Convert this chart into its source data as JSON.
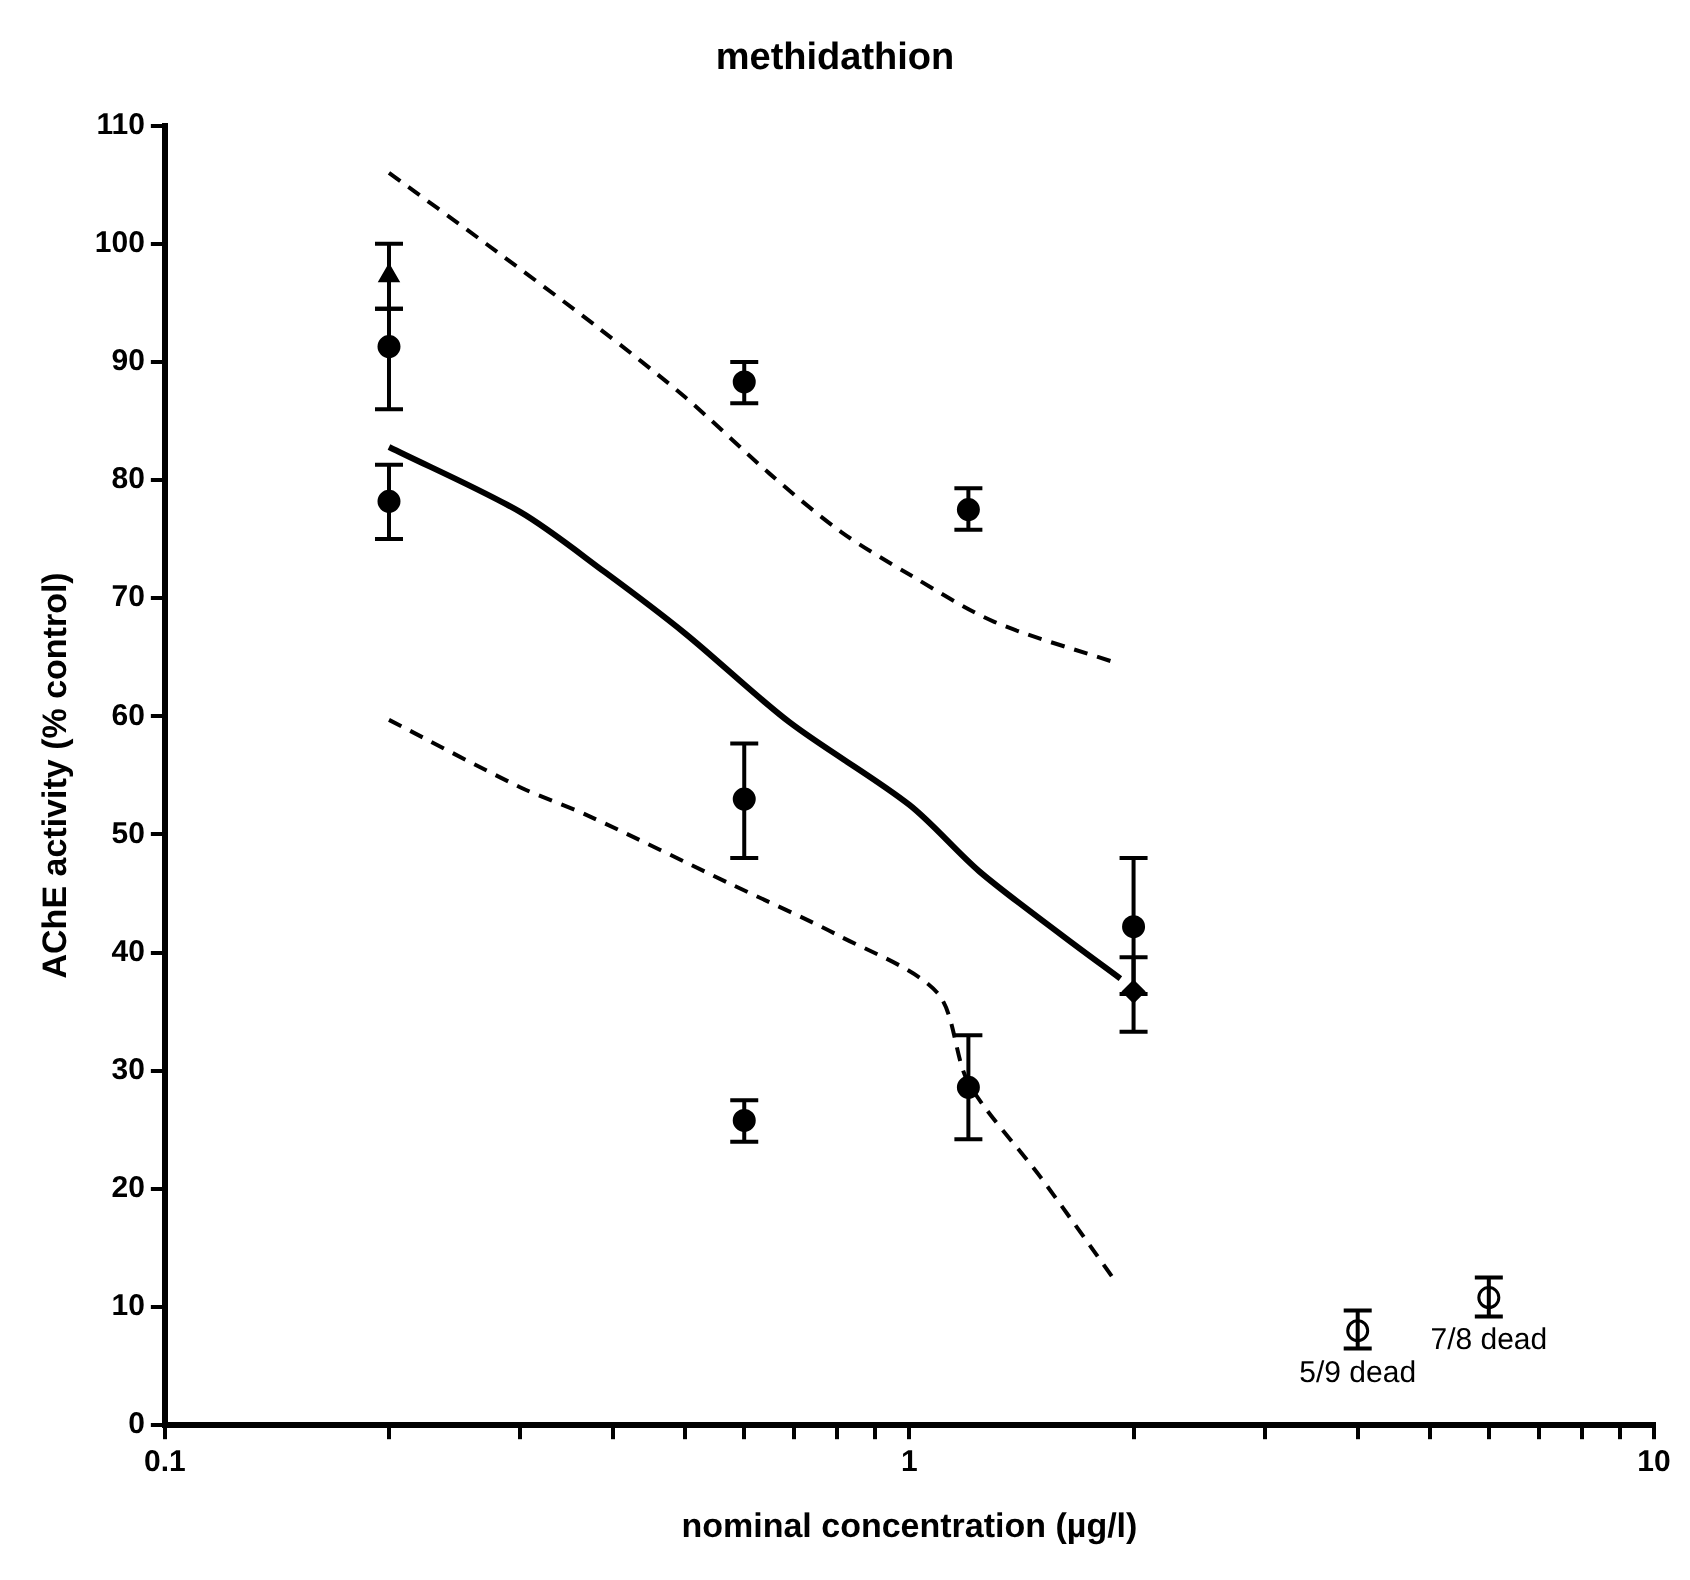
{
  "chart_data": {
    "type": "scatter",
    "title": "methidathion",
    "xlabel": "nominal concentration (µg/l)",
    "ylabel": "AChE activity (% control)",
    "log": "x",
    "xlim": [
      0.1,
      10
    ],
    "ylim": [
      0,
      110
    ],
    "xticks": [
      0.1,
      {
        "value": 0.2,
        "label": null
      },
      {
        "value": 0.3,
        "label": null
      },
      {
        "value": 0.4,
        "label": null
      },
      {
        "value": 0.5,
        "label": null
      },
      {
        "value": 0.6,
        "label": null
      },
      {
        "value": 0.7,
        "label": null
      },
      {
        "value": 0.8,
        "label": null
      },
      {
        "value": 0.9,
        "label": null
      },
      1,
      {
        "value": 2,
        "label": null
      },
      {
        "value": 3,
        "label": null
      },
      {
        "value": 4,
        "label": null
      },
      {
        "value": 5,
        "label": null
      },
      {
        "value": 6,
        "label": null
      },
      {
        "value": 7,
        "label": null
      },
      {
        "value": 8,
        "label": null
      },
      {
        "value": 9,
        "label": null
      },
      10
    ],
    "yticks": [
      0,
      10,
      20,
      30,
      40,
      50,
      60,
      70,
      80,
      90,
      100,
      110
    ],
    "grid": false,
    "legend": false,
    "series": [
      {
        "type": "scatter",
        "marker": "circle",
        "color": "#000000",
        "x": [
          0.2,
          0.2,
          0.6,
          0.6,
          0.6,
          1.2,
          1.2,
          2
        ],
        "values": [
          91.3,
          78.2,
          88.3,
          53,
          25.8,
          77.5,
          28.6,
          42.2
        ],
        "errors": [
          [
            86,
            94.5
          ],
          [
            75,
            81.3
          ],
          [
            86.5,
            90
          ],
          [
            48,
            57.7
          ],
          [
            24,
            27.5
          ],
          [
            75.8,
            79.3
          ],
          [
            24.2,
            33
          ],
          [
            36.5,
            48
          ]
        ]
      },
      {
        "type": "scatter",
        "marker": "triangle",
        "color": "#000000",
        "x": [
          0.2
        ],
        "values": [
          97.3
        ],
        "errors": [
          [
            94.5,
            100
          ]
        ]
      },
      {
        "type": "scatter",
        "marker": "diamond",
        "color": "#000000",
        "x": [
          2
        ],
        "values": [
          36.7
        ],
        "errors": [
          [
            33.3,
            39.6
          ]
        ]
      },
      {
        "type": "scatter",
        "marker": "circle",
        "color": "#ffffff",
        "x": [
          4,
          6
        ],
        "values": [
          8,
          10.8
        ],
        "errors": [
          [
            6.5,
            9.7
          ],
          [
            9.2,
            12.5
          ]
        ]
      },
      {
        "type": "line",
        "line_style": "solid",
        "marker": "none",
        "color": "#000000",
        "x": [
          0.2,
          0.3,
          0.39,
          0.5,
          0.69,
          1,
          1.24,
          1.6,
          1.92
        ],
        "values": [
          82.8,
          77.3,
          72.2,
          67,
          59.5,
          52.5,
          46.9,
          41.5,
          37.8
        ]
      },
      {
        "type": "line",
        "line_style": "dashed",
        "marker": "none",
        "color": "#000000",
        "x": [
          0.2,
          0.27,
          0.38,
          0.5,
          0.65,
          0.81,
          1,
          1.3,
          1.9
        ],
        "values": [
          106,
          100,
          93,
          87,
          80.5,
          75.6,
          72,
          68,
          64.5
        ]
      },
      {
        "type": "line",
        "line_style": "dashed",
        "marker": "none",
        "color": "#000000",
        "x": [
          0.2,
          0.3,
          0.37,
          0.58,
          0.8,
          1.09,
          1.2,
          1.5,
          1.9
        ],
        "values": [
          59.7,
          54,
          51.6,
          45.7,
          41.5,
          36.6,
          29,
          21,
          12
        ]
      }
    ],
    "annotations": [
      {
        "text": "5/9 dead",
        "x": 4,
        "y": 8
      },
      {
        "text": "7/8 dead",
        "x": 6,
        "y": 10.8
      }
    ]
  }
}
